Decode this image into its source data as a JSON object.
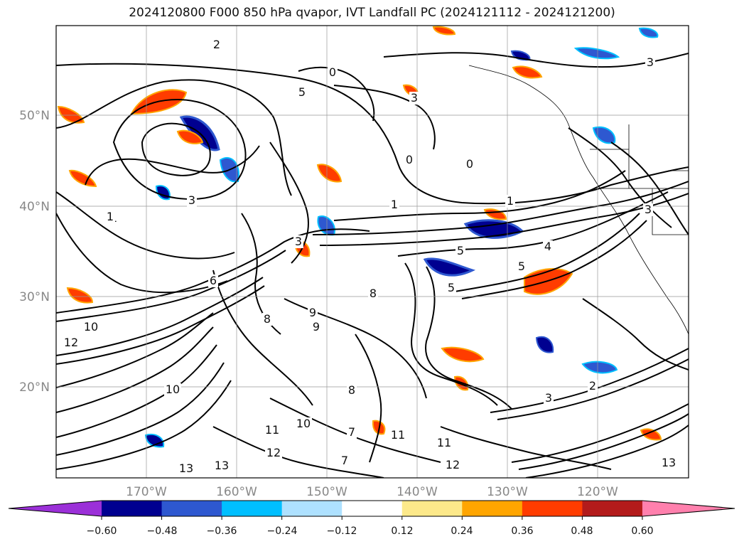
{
  "title": "2024120800 F000 850 hPa qvapor, IVT Landfall PC (2024121112 - 2024121200)",
  "map": {
    "lat_ticks": [
      "50°N",
      "40°N",
      "30°N",
      "20°N"
    ],
    "lon_ticks": [
      "170°W",
      "160°W",
      "150°W",
      "140°W",
      "130°W",
      "120°W"
    ],
    "contour_labels": [
      "2",
      "0",
      "3",
      "5",
      "1",
      "3",
      "0",
      "0",
      "1",
      "3",
      "3",
      "1",
      "5",
      "4",
      "3",
      "5",
      "5",
      "2",
      "8",
      "9",
      "8",
      "10",
      "12",
      "10",
      "11",
      "10",
      "11",
      "11",
      "7",
      "12",
      "13",
      "13",
      "12",
      "13",
      "3",
      "1",
      "7",
      "6",
      "8",
      "9"
    ]
  },
  "colorbar": {
    "ticks": [
      "−0.60",
      "−0.48",
      "−0.36",
      "−0.24",
      "−0.12",
      "0.12",
      "0.24",
      "0.36",
      "0.48",
      "0.60"
    ],
    "colors": [
      "#9b30d8",
      "#000090",
      "#2e58d0",
      "#00bfff",
      "#aee1ff",
      "#ffffff",
      "#fde98a",
      "#ffa500",
      "#ff3c00",
      "#b31b1b",
      "#ff80ad"
    ]
  }
}
